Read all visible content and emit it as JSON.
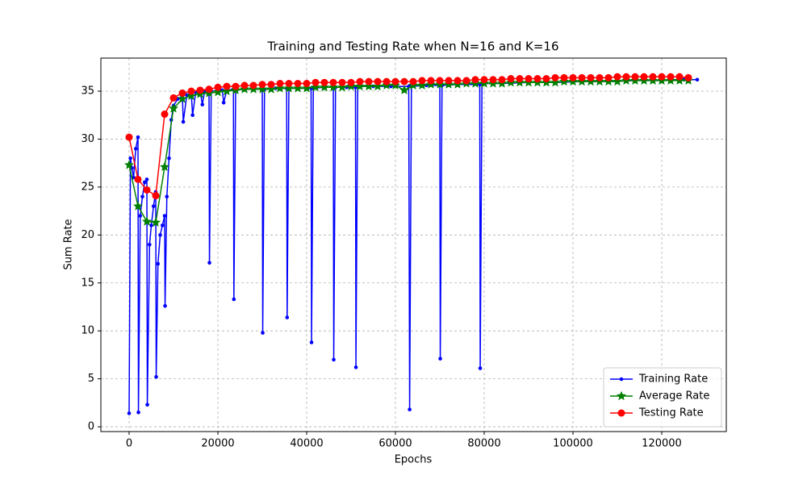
{
  "chart_data": {
    "type": "line",
    "title": "Training and Testing Rate when N=16 and K=16",
    "x_label": "Epochs",
    "y_label": "Sum Rate",
    "xlim": [
      -6364,
      134545
    ],
    "ylim": [
      -0.5,
      38.45
    ],
    "xticks": [
      0,
      20000,
      40000,
      60000,
      80000,
      100000,
      120000
    ],
    "yticks": [
      0,
      5,
      10,
      15,
      20,
      25,
      30,
      35
    ],
    "grid": true,
    "legend": "lower right",
    "series": [
      {
        "name": "Training Rate",
        "color": "#0000ff",
        "marker": "circle",
        "x": [
          0,
          300,
          600,
          1000,
          1500,
          2000,
          2100,
          2500,
          3000,
          3500,
          4000,
          4100,
          4600,
          5000,
          5500,
          6000,
          6100,
          6500,
          7000,
          7500,
          8000,
          8100,
          8500,
          9000,
          9500,
          10000,
          11000,
          12000,
          12200,
          13000,
          14000,
          14300,
          15000,
          16000,
          16500,
          17000,
          18000,
          18100,
          18500,
          20000,
          21000,
          21300,
          22000,
          23500,
          23600,
          24000,
          26000,
          28000,
          30000,
          30100,
          30500,
          33000,
          35500,
          35600,
          36000,
          38000,
          41000,
          41100,
          41500,
          44000,
          46000,
          46100,
          46500,
          49000,
          51000,
          51100,
          51500,
          55000,
          59000,
          63000,
          63200,
          63600,
          67000,
          70000,
          70100,
          70500,
          74000,
          79000,
          79100,
          79500,
          84000,
          90000,
          96000,
          102000,
          108000,
          114000,
          120000,
          125000,
          128000
        ],
        "values": [
          1.4,
          28,
          27,
          26,
          29,
          30.2,
          1.5,
          22,
          24,
          25.5,
          25.8,
          2.3,
          19,
          21,
          23,
          24.5,
          5.2,
          17,
          20,
          21,
          22,
          12.6,
          24,
          28,
          32,
          33.5,
          34.2,
          34.5,
          31.8,
          34.6,
          34.8,
          32.5,
          34.9,
          35,
          33.6,
          35,
          35.1,
          17.1,
          35,
          35.1,
          35.1,
          33.8,
          35.1,
          35.2,
          13.3,
          35.1,
          35.2,
          35.2,
          35.2,
          9.8,
          35.2,
          35.3,
          35.3,
          11.4,
          35.3,
          35.3,
          35.3,
          8.8,
          35.3,
          35.4,
          35.4,
          7,
          35.4,
          35.4,
          35.4,
          6.2,
          35.5,
          35.5,
          35.5,
          35.5,
          1.8,
          35.5,
          35.6,
          35.6,
          7.1,
          35.6,
          35.7,
          35.7,
          6.1,
          35.8,
          35.8,
          35.9,
          35.9,
          36,
          36,
          36.1,
          36.1,
          36.2,
          36.2
        ]
      },
      {
        "name": "Average Rate",
        "color": "#008000",
        "marker": "star",
        "x": [
          0,
          2000,
          4000,
          6000,
          8000,
          10000,
          12000,
          14000,
          16000,
          18000,
          20000,
          22000,
          24000,
          26000,
          28000,
          30000,
          32000,
          34000,
          36000,
          38000,
          40000,
          42000,
          44000,
          46000,
          48000,
          50000,
          52000,
          54000,
          56000,
          58000,
          60000,
          62000,
          64000,
          66000,
          68000,
          70000,
          72000,
          74000,
          76000,
          78000,
          80000,
          82000,
          84000,
          86000,
          88000,
          90000,
          92000,
          94000,
          96000,
          98000,
          100000,
          102000,
          104000,
          106000,
          108000,
          110000,
          112000,
          114000,
          116000,
          118000,
          120000,
          122000,
          124000,
          126000
        ],
        "values": [
          27.3,
          23.0,
          21.4,
          21.3,
          27.1,
          33.2,
          34.2,
          34.5,
          34.7,
          34.8,
          34.9,
          35.0,
          35.1,
          35.2,
          35.2,
          35.2,
          35.2,
          35.3,
          35.3,
          35.3,
          35.3,
          35.4,
          35.4,
          35.4,
          35.4,
          35.5,
          35.5,
          35.5,
          35.5,
          35.6,
          35.6,
          35.1,
          35.6,
          35.6,
          35.7,
          35.7,
          35.7,
          35.7,
          35.8,
          35.8,
          35.8,
          35.8,
          35.8,
          35.9,
          35.9,
          35.9,
          35.9,
          35.9,
          35.9,
          36.0,
          36.0,
          36.0,
          36.0,
          36.0,
          36.0,
          36.0,
          36.1,
          36.1,
          36.1,
          36.1,
          36.1,
          36.1,
          36.1,
          36.1
        ]
      },
      {
        "name": "Testing Rate",
        "color": "#ff0000",
        "marker": "big-circle",
        "x": [
          0,
          2000,
          4000,
          6000,
          8000,
          10000,
          12000,
          14000,
          16000,
          18000,
          20000,
          22000,
          24000,
          26000,
          28000,
          30000,
          32000,
          34000,
          36000,
          38000,
          40000,
          42000,
          44000,
          46000,
          48000,
          50000,
          52000,
          54000,
          56000,
          58000,
          60000,
          62000,
          64000,
          66000,
          68000,
          70000,
          72000,
          74000,
          76000,
          78000,
          80000,
          82000,
          84000,
          86000,
          88000,
          90000,
          92000,
          94000,
          96000,
          98000,
          100000,
          102000,
          104000,
          106000,
          108000,
          110000,
          112000,
          114000,
          116000,
          118000,
          120000,
          122000,
          124000,
          126000
        ],
        "values": [
          30.2,
          25.8,
          24.7,
          24.1,
          32.6,
          34.3,
          34.8,
          35.0,
          35.1,
          35.2,
          35.4,
          35.5,
          35.5,
          35.6,
          35.6,
          35.7,
          35.7,
          35.8,
          35.8,
          35.8,
          35.8,
          35.9,
          35.9,
          35.9,
          35.9,
          35.9,
          36.0,
          36.0,
          36.0,
          36.0,
          36.0,
          36.0,
          36.0,
          36.1,
          36.1,
          36.1,
          36.1,
          36.1,
          36.1,
          36.2,
          36.2,
          36.2,
          36.2,
          36.3,
          36.3,
          36.3,
          36.3,
          36.3,
          36.4,
          36.4,
          36.4,
          36.4,
          36.4,
          36.4,
          36.4,
          36.5,
          36.5,
          36.5,
          36.5,
          36.5,
          36.5,
          36.5,
          36.5,
          36.4
        ]
      }
    ]
  }
}
